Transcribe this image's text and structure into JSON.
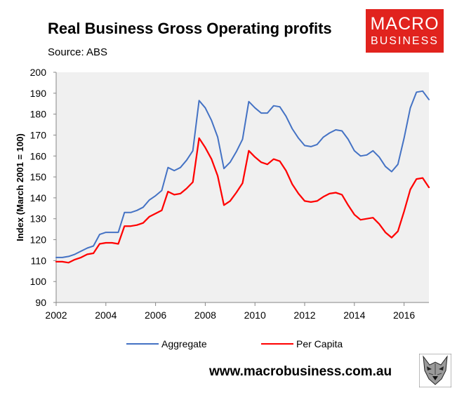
{
  "header": {
    "title": "Real Business Gross Operating profits",
    "source": "Source: ABS"
  },
  "logo": {
    "line1": "MACRO",
    "line2": "BUSINESS",
    "color": "#e1231e"
  },
  "footer": {
    "website": "www.macrobusiness.com.au",
    "mascot_icon": "wolf-icon"
  },
  "chart_data": {
    "type": "line",
    "title": "Real Business Gross Operating profits",
    "xlabel": "",
    "ylabel": "Index (March 2001 = 100)",
    "xlim": [
      2002,
      2017
    ],
    "ylim": [
      90,
      200
    ],
    "xticks": [
      2002,
      2004,
      2006,
      2008,
      2010,
      2012,
      2014,
      2016
    ],
    "yticks": [
      90,
      100,
      110,
      120,
      130,
      140,
      150,
      160,
      170,
      180,
      190,
      200
    ],
    "grid": false,
    "legend_position": "bottom",
    "series": [
      {
        "name": "Aggregate",
        "color": "#4472c4",
        "x": [
          2002.0,
          2002.25,
          2002.5,
          2002.75,
          2003.0,
          2003.25,
          2003.5,
          2003.75,
          2004.0,
          2004.25,
          2004.5,
          2004.75,
          2005.0,
          2005.25,
          2005.5,
          2005.75,
          2006.0,
          2006.25,
          2006.5,
          2006.75,
          2007.0,
          2007.25,
          2007.5,
          2007.75,
          2008.0,
          2008.25,
          2008.5,
          2008.75,
          2009.0,
          2009.25,
          2009.5,
          2009.75,
          2010.0,
          2010.25,
          2010.5,
          2010.75,
          2011.0,
          2011.25,
          2011.5,
          2011.75,
          2012.0,
          2012.25,
          2012.5,
          2012.75,
          2013.0,
          2013.25,
          2013.5,
          2013.75,
          2014.0,
          2014.25,
          2014.5,
          2014.75,
          2015.0,
          2015.25,
          2015.5,
          2015.75,
          2016.0,
          2016.25,
          2016.5,
          2016.75,
          2017.0
        ],
        "values": [
          111.5,
          111.5,
          112,
          113,
          114.5,
          116,
          117,
          122.5,
          123.5,
          123.5,
          123.5,
          133,
          133,
          134,
          135.5,
          139,
          141,
          143.5,
          154.5,
          153,
          154.5,
          158,
          162.5,
          186.5,
          183,
          177,
          169,
          154,
          157,
          162,
          168,
          186,
          183,
          180.5,
          180.5,
          184,
          183.5,
          179,
          173,
          168.5,
          165,
          164.5,
          165.5,
          169,
          171,
          172.5,
          172,
          168,
          162.5,
          160,
          160.5,
          162.5,
          159.5,
          155,
          152.5,
          156,
          168.5,
          183,
          190.5,
          191,
          187
        ]
      },
      {
        "name": "Per Capita",
        "color": "#ff0000",
        "x": [
          2002.0,
          2002.25,
          2002.5,
          2002.75,
          2003.0,
          2003.25,
          2003.5,
          2003.75,
          2004.0,
          2004.25,
          2004.5,
          2004.75,
          2005.0,
          2005.25,
          2005.5,
          2005.75,
          2006.0,
          2006.25,
          2006.5,
          2006.75,
          2007.0,
          2007.25,
          2007.5,
          2007.75,
          2008.0,
          2008.25,
          2008.5,
          2008.75,
          2009.0,
          2009.25,
          2009.5,
          2009.75,
          2010.0,
          2010.25,
          2010.5,
          2010.75,
          2011.0,
          2011.25,
          2011.5,
          2011.75,
          2012.0,
          2012.25,
          2012.5,
          2012.75,
          2013.0,
          2013.25,
          2013.5,
          2013.75,
          2014.0,
          2014.25,
          2014.5,
          2014.75,
          2015.0,
          2015.25,
          2015.5,
          2015.75,
          2016.0,
          2016.25,
          2016.5,
          2016.75,
          2017.0
        ],
        "values": [
          109.5,
          109.5,
          109,
          110.5,
          111.5,
          113,
          113.5,
          118,
          118.5,
          118.5,
          118,
          126.5,
          126.5,
          127,
          128,
          131,
          132.5,
          134,
          143,
          141.5,
          142,
          144.5,
          147.5,
          168.5,
          164,
          158.5,
          150.5,
          136.5,
          138.5,
          142.5,
          147,
          162.5,
          159.5,
          157,
          156,
          158.5,
          157.5,
          153,
          146.5,
          142,
          138.5,
          138,
          138.5,
          140.5,
          142,
          142.5,
          141.5,
          136.5,
          132,
          129.5,
          130,
          130.5,
          127.5,
          123.5,
          121,
          124,
          133.5,
          144,
          149,
          149.5,
          145
        ]
      }
    ]
  }
}
